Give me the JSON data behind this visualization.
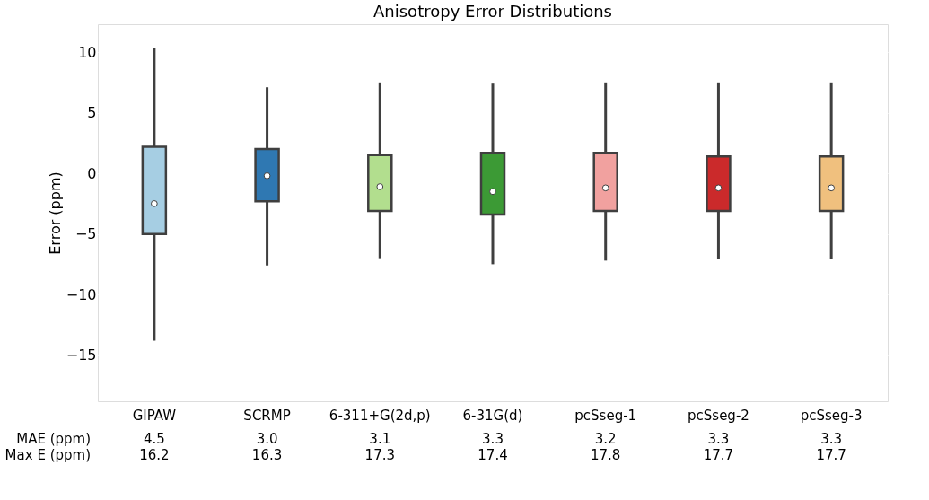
{
  "chart_data": {
    "type": "box",
    "title": "Anisotropy Error Distributions",
    "ylabel": "Error (ppm)",
    "categories": [
      "GIPAW",
      "SCRMP",
      "6-311+G(2d,p)",
      "6-31G(d)",
      "pcSseg-1",
      "pcSseg-2",
      "pcSseg-3"
    ],
    "colors": [
      "#a6cee3",
      "#2f78b2",
      "#b2de8e",
      "#3c9a35",
      "#f1a19f",
      "#cb2a2b",
      "#f0c07e"
    ],
    "boxes": [
      {
        "low": -13.8,
        "q1": -5.0,
        "median": -2.5,
        "q3": 2.2,
        "high": 10.3
      },
      {
        "low": -7.6,
        "q1": -2.3,
        "median": -0.2,
        "q3": 2.0,
        "high": 7.1
      },
      {
        "low": -7.0,
        "q1": -3.1,
        "median": -1.1,
        "q3": 1.5,
        "high": 7.5
      },
      {
        "low": -7.5,
        "q1": -3.4,
        "median": -1.5,
        "q3": 1.7,
        "high": 7.4
      },
      {
        "low": -7.2,
        "q1": -3.1,
        "median": -1.2,
        "q3": 1.7,
        "high": 7.5
      },
      {
        "low": -7.1,
        "q1": -3.1,
        "median": -1.2,
        "q3": 1.4,
        "high": 7.5
      },
      {
        "low": -7.1,
        "q1": -3.1,
        "median": -1.2,
        "q3": 1.4,
        "high": 7.5
      }
    ],
    "ylim": [
      -18.8,
      12.3
    ],
    "yticks": [
      -15,
      -10,
      -5,
      0,
      5,
      10
    ],
    "grid": "y",
    "annotations": [
      "MAE (ppm)",
      "4.5",
      "3.0",
      "3.1",
      "3.3",
      "3.2",
      "3.3",
      "3.3",
      "Max E (ppm)",
      "16.2",
      "16.3",
      "17.3",
      "17.4",
      "17.8",
      "17.7",
      "17.7"
    ]
  }
}
